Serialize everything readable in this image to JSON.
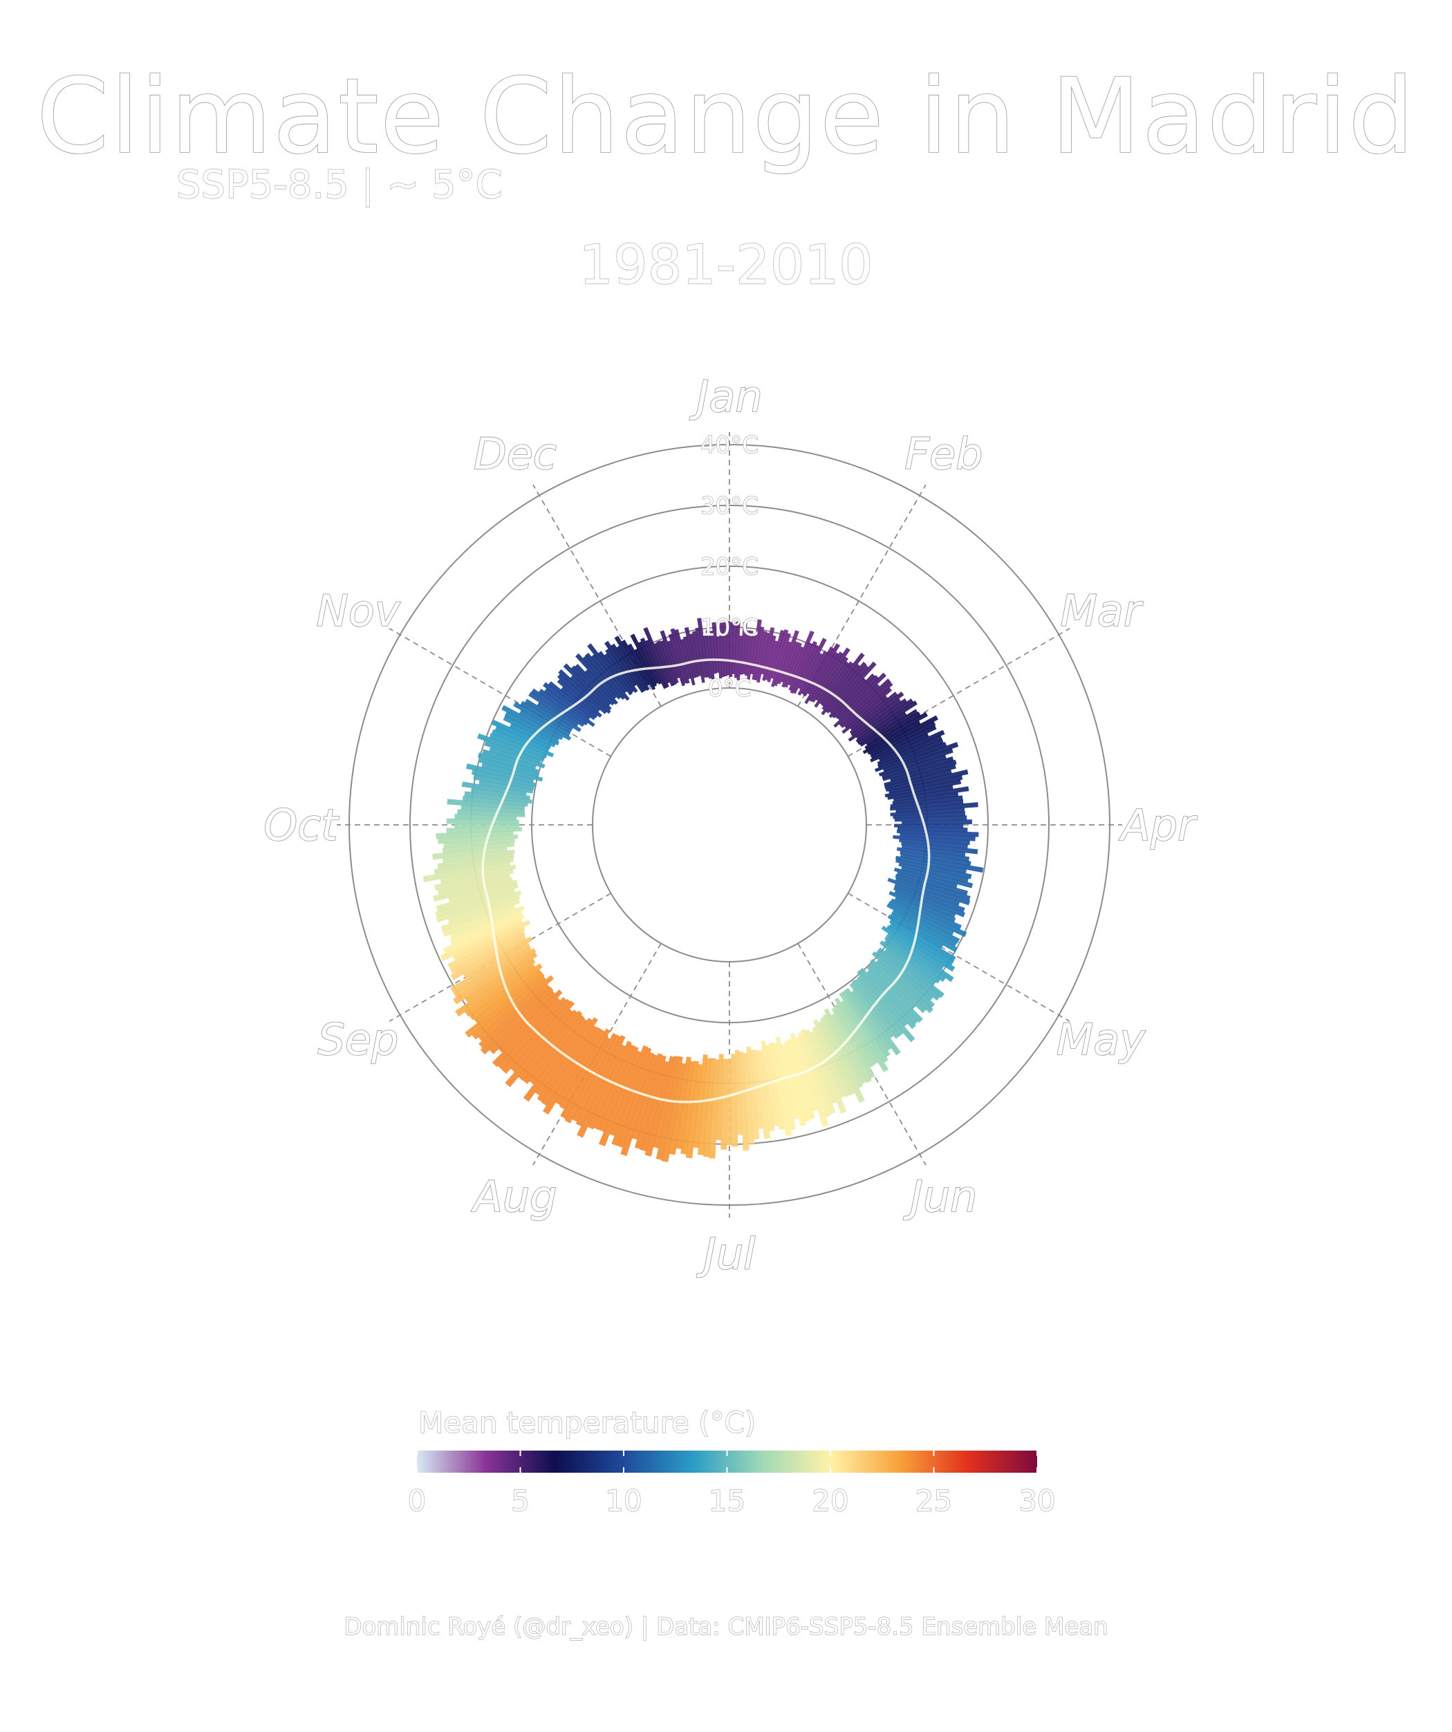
{
  "header": {
    "title": "Climate Change in Madrid",
    "subtitle": "SSP5-8.5 | ~ 5°C",
    "period": "1981-2010"
  },
  "caption": "Dominic Royé (@dr_xeo) | Data: CMIP6-SSP5-8.5 Ensemble Mean",
  "chart_data": {
    "type": "polar-bar",
    "title": "Climate Change in Madrid",
    "subtitle": "SSP5-8.5 | ~ 5°C",
    "period": "1981-2010",
    "angular_axis": {
      "labels": [
        "Jan",
        "Feb",
        "Mar",
        "Apr",
        "May",
        "Jun",
        "Jul",
        "Aug",
        "Sep",
        "Oct",
        "Nov",
        "Dec"
      ],
      "direction": "clockwise",
      "start": "top"
    },
    "radial_axis": {
      "ticks": [
        0,
        10,
        20,
        30,
        40
      ],
      "tick_labels": [
        "0°C",
        "10°C",
        "20°C",
        "30°C",
        "40°C"
      ],
      "range": [
        -10,
        40
      ]
    },
    "series_note": "daily min-max temperature bars coloured by mean temperature",
    "monthly": {
      "months": [
        "Jan",
        "Feb",
        "Mar",
        "Apr",
        "May",
        "Jun",
        "Jul",
        "Aug",
        "Sep",
        "Oct",
        "Nov",
        "Dec"
      ],
      "tmin": [
        2,
        2,
        4,
        6,
        10,
        14,
        17,
        17,
        14,
        10,
        5,
        2
      ],
      "tmax": [
        10,
        12,
        16,
        18,
        22,
        28,
        33,
        32,
        27,
        20,
        14,
        10
      ],
      "tmean": [
        4,
        5,
        8,
        11,
        15,
        20,
        24,
        24,
        19,
        14,
        9,
        5
      ]
    },
    "legend": {
      "title": "Mean temperature (°C)",
      "ticks": [
        0,
        5,
        10,
        15,
        20,
        25,
        30
      ],
      "tick_labels": [
        "0",
        "5",
        "10",
        "15",
        "20",
        "25",
        "30"
      ],
      "colors": [
        "#d6e9f3",
        "#8a3496",
        "#0d0e4f",
        "#1f4a9c",
        "#2a9cc6",
        "#9fd9b6",
        "#fff2a8",
        "#f8a23a",
        "#e2301d",
        "#7d0a3c"
      ]
    }
  }
}
